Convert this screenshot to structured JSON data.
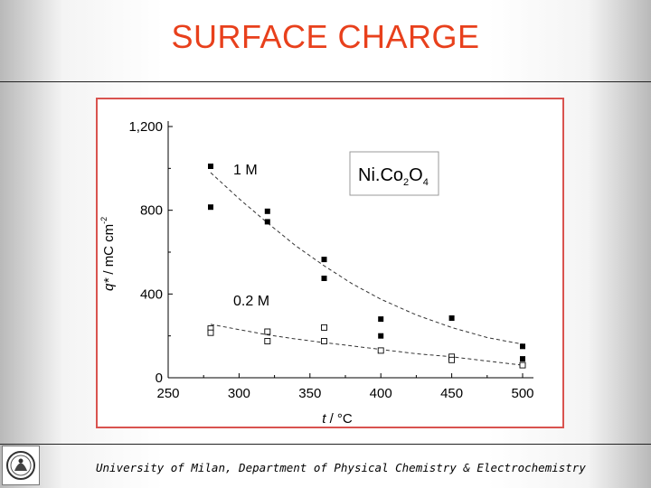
{
  "slide": {
    "title": "SURFACE CHARGE",
    "footer": "University of Milan, Department of Physical Chemistry & Electrochemistry"
  },
  "chart_data": {
    "type": "scatter",
    "xlabel_var": "t",
    "xlabel_unit": " / °C",
    "ylabel_var": "q*",
    "ylabel_unit": " / mC cm",
    "ylabel_sup": "-2",
    "xlim": [
      250,
      500
    ],
    "ylim": [
      0,
      1200
    ],
    "x_ticks": [
      250,
      300,
      350,
      400,
      450,
      500
    ],
    "y_ticks": [
      0,
      400,
      800,
      1200
    ],
    "y_tick_labels": [
      "0",
      "400",
      "800",
      "1,200"
    ],
    "annotation": {
      "base": "Ni.Co",
      "sub1": "2",
      "mid": "O",
      "sub2": "4"
    },
    "series": [
      {
        "name": "1 M",
        "marker": "filled-square",
        "color": "#000000",
        "points": [
          [
            280,
            1010
          ],
          [
            280,
            815
          ],
          [
            320,
            795
          ],
          [
            320,
            745
          ],
          [
            360,
            565
          ],
          [
            360,
            475
          ],
          [
            400,
            280
          ],
          [
            400,
            200
          ],
          [
            450,
            285
          ],
          [
            500,
            150
          ],
          [
            500,
            90
          ]
        ],
        "fit": [
          [
            280,
            980
          ],
          [
            300,
            855
          ],
          [
            320,
            740
          ],
          [
            340,
            630
          ],
          [
            360,
            535
          ],
          [
            380,
            448
          ],
          [
            400,
            375
          ],
          [
            425,
            300
          ],
          [
            450,
            240
          ],
          [
            475,
            192
          ],
          [
            500,
            160
          ]
        ]
      },
      {
        "name": "0.2 M",
        "marker": "open-square",
        "color": "#000000",
        "points": [
          [
            280,
            235
          ],
          [
            280,
            215
          ],
          [
            320,
            220
          ],
          [
            320,
            175
          ],
          [
            360,
            240
          ],
          [
            360,
            175
          ],
          [
            400,
            130
          ],
          [
            450,
            100
          ],
          [
            450,
            85
          ],
          [
            500,
            60
          ]
        ],
        "fit": [
          [
            280,
            255
          ],
          [
            300,
            230
          ],
          [
            320,
            205
          ],
          [
            340,
            185
          ],
          [
            360,
            168
          ],
          [
            380,
            152
          ],
          [
            400,
            135
          ],
          [
            425,
            115
          ],
          [
            450,
            100
          ],
          [
            475,
            80
          ],
          [
            500,
            60
          ]
        ]
      }
    ]
  }
}
